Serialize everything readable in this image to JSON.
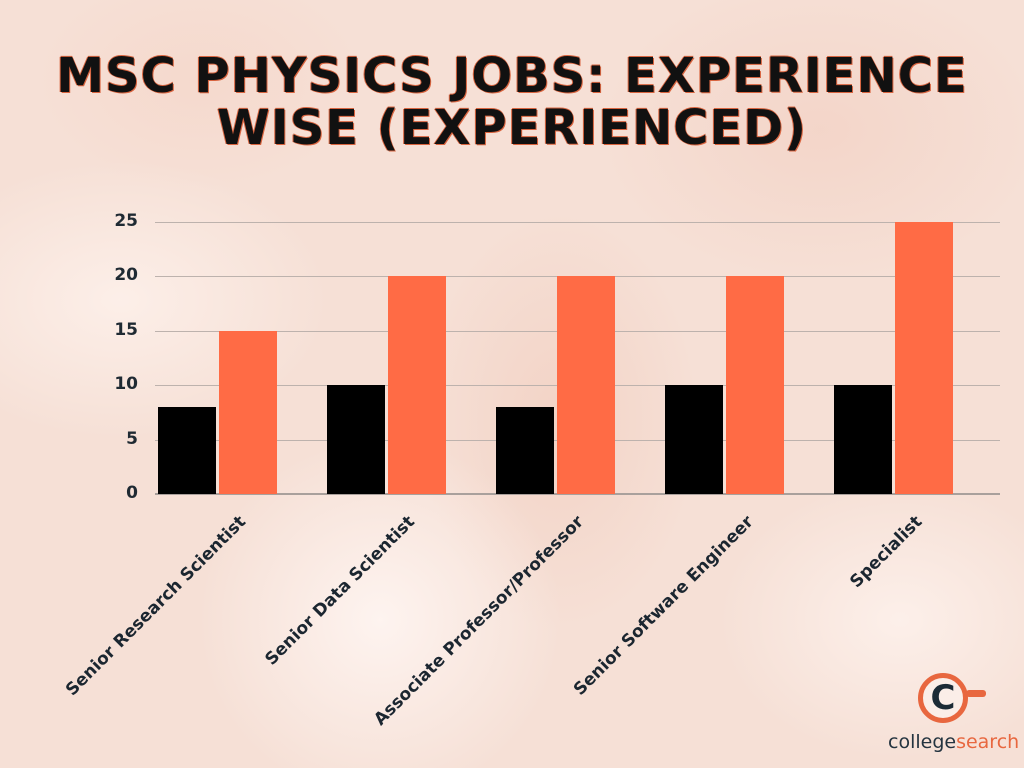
{
  "title": {
    "line1": "MSC PHYSICS JOBS: EXPERIENCE",
    "line2": "WISE (EXPERIENCED)"
  },
  "y_ticks": [
    "0",
    "5",
    "10",
    "15",
    "20",
    "25"
  ],
  "categories": [
    "Senior Research Scientist",
    "Senior Data Scientist",
    "Associate Professor/Professor",
    "Senior Software Engineer",
    "Specialist"
  ],
  "logo": {
    "part1": "college",
    "part2": "search",
    "glyph": "C"
  },
  "colors": {
    "series1": "#000000",
    "series2": "#ff6b45",
    "accent": "#e8673f"
  },
  "chart_data": {
    "type": "bar",
    "title": "MSC Physics Jobs: Experience Wise (Experienced)",
    "categories": [
      "Senior Research Scientist",
      "Senior Data Scientist",
      "Associate Professor/Professor",
      "Senior Software Engineer",
      "Specialist"
    ],
    "series": [
      {
        "name": "Series 1 (black)",
        "color": "#000000",
        "values": [
          8,
          10,
          8,
          10,
          10
        ]
      },
      {
        "name": "Series 2 (orange)",
        "color": "#ff6b45",
        "values": [
          15,
          20,
          20,
          20,
          25
        ]
      }
    ],
    "xlabel": "",
    "ylabel": "",
    "ylim": [
      0,
      25
    ],
    "yticks": [
      0,
      5,
      10,
      15,
      20,
      25
    ],
    "grid": true,
    "legend": "none"
  }
}
